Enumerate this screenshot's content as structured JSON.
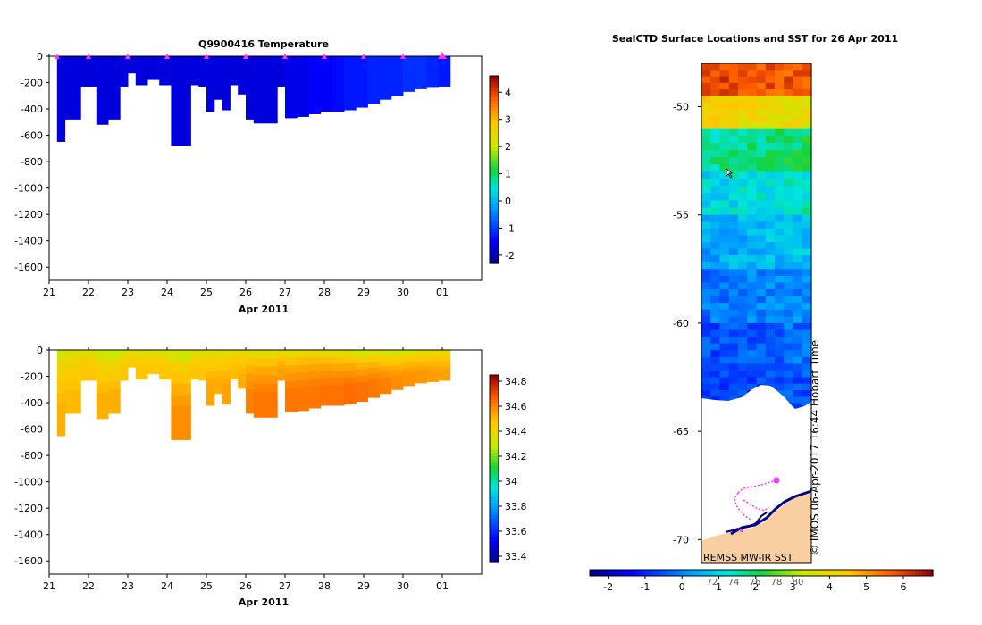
{
  "chart_data": [
    {
      "type": "heatmap",
      "title": "Q9900416  Temperature",
      "xlabel": "Apr 2011",
      "ylabel": "",
      "x_tick_labels": [
        "21",
        "22",
        "23",
        "24",
        "25",
        "26",
        "27",
        "28",
        "29",
        "30",
        "01"
      ],
      "y_tick_labels": [
        "0",
        "-200",
        "-400",
        "-600",
        "-800",
        "-1000",
        "-1200",
        "-1400",
        "-1600"
      ],
      "ylim": [
        -1700,
        0
      ],
      "xlim": [
        21,
        32
      ],
      "colorbar": {
        "min": -2.3,
        "max": 4.6,
        "ticks": [
          "4",
          "3",
          "2",
          "1",
          "0",
          "-1",
          "-2"
        ]
      },
      "series": [
        {
          "name": "profile_max_depth",
          "x": [
            21.2,
            21.4,
            21.8,
            22.2,
            22.5,
            22.8,
            23.0,
            23.2,
            23.5,
            23.8,
            24.1,
            24.4,
            24.6,
            24.8,
            25.0,
            25.2,
            25.4,
            25.6,
            25.8,
            26.0,
            26.2,
            26.5,
            26.8,
            27.0,
            27.3,
            27.6,
            27.9,
            28.2,
            28.5,
            28.8,
            29.1,
            29.4,
            29.7,
            30.0,
            30.3,
            30.6,
            30.9
          ],
          "values": [
            -650,
            -480,
            -230,
            -520,
            -480,
            -230,
            -130,
            -220,
            -180,
            -220,
            -680,
            -680,
            -220,
            -230,
            -420,
            -330,
            -410,
            -220,
            -290,
            -480,
            -510,
            -510,
            -230,
            -470,
            -460,
            -440,
            -420,
            -420,
            -410,
            -390,
            -360,
            -330,
            -300,
            -270,
            -250,
            -240,
            -230
          ]
        },
        {
          "name": "profile_temperature",
          "x": [
            21.2,
            21.4,
            21.8,
            22.2,
            22.5,
            22.8,
            23.0,
            23.2,
            23.5,
            23.8,
            24.1,
            24.4,
            24.6,
            24.8,
            25.0,
            25.2,
            25.4,
            25.6,
            25.8,
            26.0,
            26.2,
            26.5,
            26.8,
            27.0,
            27.3,
            27.6,
            27.9,
            28.2,
            28.5,
            28.8,
            29.1,
            29.4,
            29.7,
            30.0,
            30.3,
            30.6,
            30.9
          ],
          "values": [
            -1.7,
            -1.7,
            -1.7,
            -1.7,
            -1.7,
            -1.7,
            -1.7,
            -1.7,
            -1.7,
            -1.7,
            -1.7,
            -1.7,
            -1.7,
            -1.7,
            -1.7,
            -1.7,
            -1.7,
            -1.7,
            -1.7,
            -1.7,
            -1.7,
            -1.7,
            -1.7,
            -1.6,
            -1.6,
            -1.5,
            -1.5,
            -1.4,
            -1.3,
            -1.3,
            -1.2,
            -1.2,
            -1.2,
            -1.1,
            -1.1,
            -1.2,
            -1.3
          ]
        }
      ],
      "surface_markers_x": [
        21.2,
        22.0,
        23.0,
        24.0,
        25.0,
        26.0,
        27.0,
        28.0,
        29.0,
        30.0,
        31.0
      ]
    },
    {
      "type": "heatmap",
      "title": "",
      "xlabel": "Apr 2011",
      "ylabel": "",
      "x_tick_labels": [
        "21",
        "22",
        "23",
        "24",
        "25",
        "26",
        "27",
        "28",
        "29",
        "30",
        "01"
      ],
      "y_tick_labels": [
        "0",
        "-200",
        "-400",
        "-600",
        "-800",
        "-1000",
        "-1200",
        "-1400",
        "-1600"
      ],
      "ylim": [
        -1700,
        0
      ],
      "xlim": [
        21,
        32
      ],
      "colorbar": {
        "min": 33.35,
        "max": 34.85,
        "ticks": [
          "34.8",
          "34.6",
          "34.4",
          "34.2",
          "34",
          "33.8",
          "33.6",
          "33.4"
        ]
      },
      "series": [
        {
          "name": "profile_max_depth",
          "x": [
            21.2,
            21.4,
            21.8,
            22.2,
            22.5,
            22.8,
            23.0,
            23.2,
            23.5,
            23.8,
            24.1,
            24.4,
            24.6,
            24.8,
            25.0,
            25.2,
            25.4,
            25.6,
            25.8,
            26.0,
            26.2,
            26.5,
            26.8,
            27.0,
            27.3,
            27.6,
            27.9,
            28.2,
            28.5,
            28.8,
            29.1,
            29.4,
            29.7,
            30.0,
            30.3,
            30.6,
            30.9
          ],
          "values": [
            -650,
            -480,
            -230,
            -520,
            -480,
            -230,
            -130,
            -220,
            -180,
            -220,
            -680,
            -680,
            -220,
            -230,
            -420,
            -330,
            -410,
            -220,
            -290,
            -480,
            -510,
            -510,
            -230,
            -470,
            -460,
            -440,
            -420,
            -420,
            -410,
            -390,
            -360,
            -330,
            -300,
            -270,
            -250,
            -240,
            -230
          ]
        },
        {
          "name": "profile_salinity_deep",
          "x": [
            21.2,
            21.4,
            21.8,
            22.2,
            22.5,
            22.8,
            23.0,
            23.2,
            23.5,
            23.8,
            24.1,
            24.4,
            24.6,
            24.8,
            25.0,
            25.2,
            25.4,
            25.6,
            25.8,
            26.0,
            26.2,
            26.5,
            26.8,
            27.0,
            27.3,
            27.6,
            27.9,
            28.2,
            28.5,
            28.8,
            29.1,
            29.4,
            29.7,
            30.0,
            30.3,
            30.6,
            30.9
          ],
          "values": [
            34.52,
            34.5,
            34.48,
            34.52,
            34.52,
            34.48,
            34.46,
            34.48,
            34.47,
            34.48,
            34.58,
            34.58,
            34.48,
            34.48,
            34.54,
            34.52,
            34.54,
            34.5,
            34.52,
            34.6,
            34.62,
            34.62,
            34.55,
            34.62,
            34.62,
            34.62,
            34.63,
            34.63,
            34.64,
            34.63,
            34.62,
            34.6,
            34.58,
            34.57,
            34.56,
            34.55,
            34.54
          ]
        },
        {
          "name": "profile_salinity_surface",
          "x": [
            21.2,
            21.4,
            21.8,
            22.2,
            22.5,
            22.8,
            23.0,
            23.2,
            23.5,
            23.8,
            24.1,
            24.4,
            24.6,
            24.8,
            25.0,
            25.2,
            25.4,
            25.6,
            25.8,
            26.0,
            26.2,
            26.5,
            26.8,
            27.0,
            27.3,
            27.6,
            27.9,
            28.2,
            28.5,
            28.8,
            29.1,
            29.4,
            29.7,
            30.0,
            30.3,
            30.6,
            30.9
          ],
          "values": [
            34.33,
            34.35,
            34.34,
            34.3,
            34.28,
            34.32,
            34.34,
            34.33,
            34.33,
            34.3,
            34.32,
            34.3,
            34.33,
            34.33,
            34.36,
            34.36,
            34.37,
            34.37,
            34.38,
            34.38,
            34.38,
            34.38,
            34.38,
            34.38,
            34.4,
            34.4,
            34.38,
            34.37,
            34.35,
            34.3,
            34.33,
            34.3,
            34.3,
            34.32,
            34.35,
            34.37,
            34.38
          ]
        }
      ]
    },
    {
      "type": "heatmap",
      "title": "SealCTD Surface Locations and SST for 26 Apr 2011",
      "xlabel": "",
      "ylabel": "",
      "y_tick_labels": [
        "-50",
        "-55",
        "-60",
        "-65",
        "-70"
      ],
      "ylim": [
        -71.1,
        -48.0
      ],
      "colorbar": {
        "min": -2.5,
        "max": 6.8,
        "ticks": [
          "-2",
          "-1",
          "0",
          "1",
          "2",
          "3",
          "4",
          "5",
          "6"
        ],
        "inner_ticks": [
          "72",
          "74",
          "76",
          "78",
          "80"
        ]
      },
      "sst_band_edges_lat": [
        -48.0,
        -49.5,
        -51.0,
        -53.0,
        -55.0,
        -57.5,
        -60.0,
        -62.5,
        -64.0
      ],
      "sst_band_values": [
        5.8,
        4.0,
        1.8,
        1.2,
        0.6,
        0.0,
        -0.4,
        -0.7
      ],
      "annotations": [
        "REMSS MW-IR SST",
        "© IMOS 06-Apr-2017 16:44 Hobart Time"
      ]
    }
  ],
  "colors": {
    "panel_border": "#000000",
    "land": "#f9cfa1",
    "track": "#ff33ff",
    "coast": "#000080"
  }
}
